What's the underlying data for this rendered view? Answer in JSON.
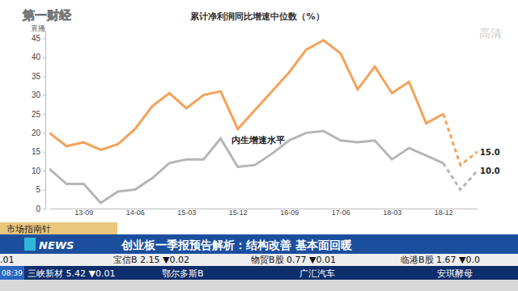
{
  "chart_data": {
    "type": "line",
    "title": "累计净利润同比增速中位数（%）",
    "categories": [
      null,
      null,
      "13-09",
      null,
      null,
      "14-06",
      null,
      null,
      "15-03",
      null,
      null,
      "15-12",
      null,
      null,
      "16-09",
      null,
      null,
      "17-06",
      null,
      null,
      "18-03",
      null,
      null,
      "18-12",
      null,
      null
    ],
    "series": [
      {
        "color": "#f4a259",
        "line_style": "solid",
        "values": [
          20,
          16.5,
          17.5,
          15.5,
          17,
          21,
          27,
          30.5,
          26.5,
          30,
          31,
          21,
          26,
          31,
          36,
          42,
          44.5,
          41,
          31.5,
          37.5,
          30.5,
          33.5,
          22.5,
          25,
          null,
          null
        ]
      },
      {
        "color": "#f4a259",
        "line_style": "dashed",
        "values": [
          null,
          null,
          null,
          null,
          null,
          null,
          null,
          null,
          null,
          null,
          null,
          null,
          null,
          null,
          null,
          null,
          null,
          null,
          null,
          null,
          null,
          null,
          null,
          25,
          11.5,
          15
        ],
        "value_labels": [
          null,
          null,
          null,
          null,
          null,
          null,
          null,
          null,
          null,
          null,
          null,
          null,
          null,
          null,
          null,
          null,
          null,
          null,
          null,
          null,
          null,
          null,
          null,
          null,
          null,
          "15.0"
        ]
      },
      {
        "name": "内生增速水平",
        "color": "#b5b5b5",
        "line_style": "solid",
        "values": [
          10.5,
          6.5,
          6.5,
          1.5,
          4.5,
          5,
          8,
          12,
          13,
          13,
          18.5,
          11,
          11.5,
          14.5,
          18,
          20,
          20.5,
          18,
          17.5,
          18,
          13,
          16,
          14,
          12,
          null,
          null
        ]
      },
      {
        "color": "#b5b5b5",
        "line_style": "dashed",
        "values": [
          null,
          null,
          null,
          null,
          null,
          null,
          null,
          null,
          null,
          null,
          null,
          null,
          null,
          null,
          null,
          null,
          null,
          null,
          null,
          null,
          null,
          null,
          null,
          12,
          5,
          10
        ],
        "value_labels": [
          null,
          null,
          null,
          null,
          null,
          null,
          null,
          null,
          null,
          null,
          null,
          null,
          null,
          null,
          null,
          null,
          null,
          null,
          null,
          null,
          null,
          null,
          null,
          null,
          null,
          "10.0"
        ]
      }
    ],
    "ylim": [
      0,
      47
    ],
    "yticks": [
      0,
      5,
      10,
      15,
      20,
      25,
      30,
      35,
      40,
      45
    ],
    "grid": false
  },
  "overlay": {
    "logo": "第一财经",
    "live": "直播",
    "hd": "高清",
    "program": "市场指南针",
    "channel": "NEWS",
    "headline": "创业板一季报预告解析：结构改善 基本面回暖",
    "ticker": [
      [
        ".01",
        "宝信B 2.15 ▼0.02",
        "物贸B股 0.77 ▼0.01",
        "临港B股 1.67 ▼0.0"
      ],
      [
        "三峡新材 5.42 ▼0.01",
        "鄂尔多斯B",
        "广汇汽车",
        "安琪酵母"
      ]
    ],
    "time": "08:39"
  }
}
